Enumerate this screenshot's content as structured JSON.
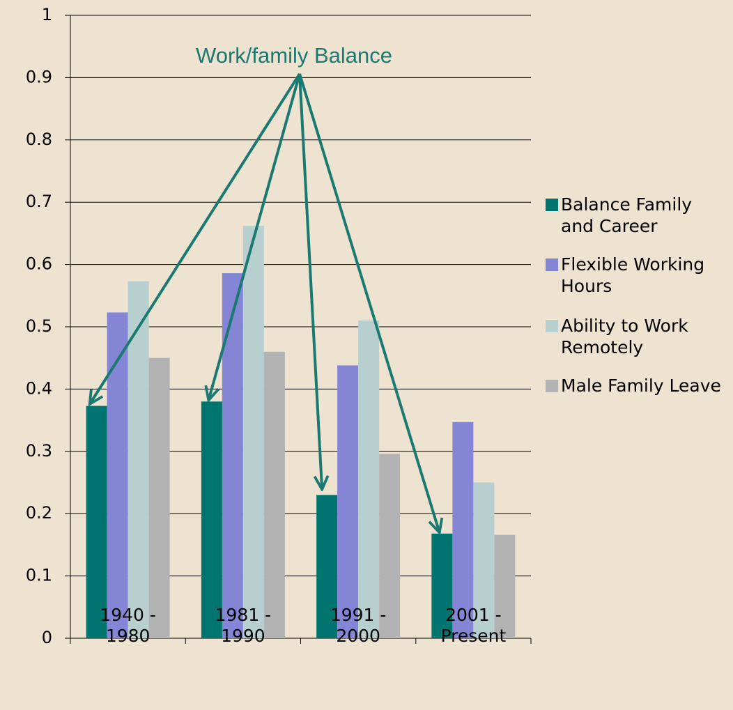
{
  "chart_data": {
    "type": "bar",
    "annotation": "Work/family Balance",
    "categories": [
      "1940 - 1980",
      "1981 - 1990",
      "1991 - 2000",
      "2001 - Present"
    ],
    "series": [
      {
        "name": "Balance Family and Career",
        "color": "#00756f",
        "values": [
          0.373,
          0.38,
          0.23,
          0.168
        ]
      },
      {
        "name": "Flexible Working Hours",
        "color": "#8585d5",
        "values": [
          0.523,
          0.586,
          0.438,
          0.347
        ]
      },
      {
        "name": "Ability to Work Remotely",
        "color": "#b7cfcf",
        "values": [
          0.573,
          0.662,
          0.51,
          0.25
        ]
      },
      {
        "name": "Male Family Leave",
        "color": "#b3b3b3",
        "values": [
          0.45,
          0.46,
          0.296,
          0.166
        ]
      }
    ],
    "ylim": [
      0,
      1
    ],
    "yticks": [
      0,
      0.1,
      0.2,
      0.3,
      0.4,
      0.5,
      0.6,
      0.7,
      0.8,
      0.9,
      1
    ],
    "grid": true,
    "legend": "right"
  }
}
